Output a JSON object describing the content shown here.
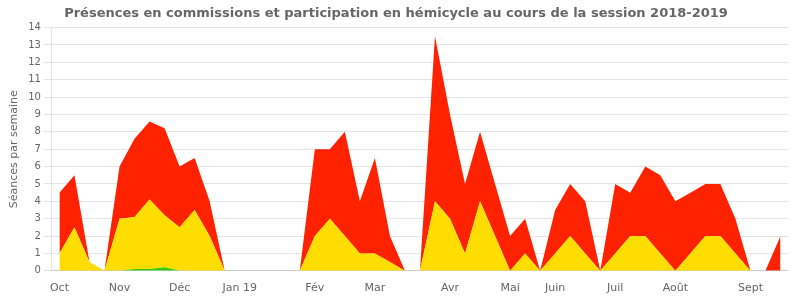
{
  "chart_data": {
    "type": "area",
    "title": "Présences en commissions et participation en hémicycle au cours de la session 2018-2019",
    "ylabel": "Séances par semaine",
    "categories": [
      "Oct",
      null,
      null,
      null,
      "Nov",
      null,
      null,
      null,
      "Déc",
      null,
      null,
      null,
      "Jan 19",
      null,
      null,
      null,
      null,
      "Fév",
      null,
      null,
      null,
      "Mar",
      null,
      null,
      null,
      null,
      "Avr",
      null,
      null,
      null,
      "Mai",
      null,
      null,
      "Juin",
      null,
      null,
      null,
      "Juil",
      null,
      null,
      null,
      "Août",
      null,
      null,
      null,
      null,
      "Sept",
      null,
      null
    ],
    "series": [
      {
        "color": "#33cc00",
        "values": [
          0,
          0,
          0,
          0,
          0,
          0.1,
          0.1,
          0.2,
          0,
          0,
          0,
          0,
          0,
          0,
          0,
          0,
          0,
          0,
          0,
          0,
          0,
          0,
          0,
          0,
          0,
          0,
          0,
          0,
          0,
          0,
          0,
          0,
          0,
          0,
          0,
          0,
          0,
          0,
          0,
          0,
          0,
          0,
          0,
          0,
          0,
          0,
          0,
          0,
          0
        ]
      },
      {
        "color": "#ffdd00",
        "values": [
          1,
          2.5,
          0.5,
          0,
          3,
          3,
          4,
          3,
          2.5,
          3.5,
          2,
          0,
          0,
          0,
          0,
          0,
          0,
          2,
          3,
          2,
          1,
          1,
          0.5,
          0,
          0,
          4,
          3,
          1,
          4,
          2,
          0,
          1,
          0,
          1,
          2,
          1,
          0,
          1,
          2,
          2,
          1,
          0,
          1,
          2,
          2,
          1,
          0,
          0,
          0
        ]
      },
      {
        "color": "#ff2200",
        "values": [
          3.5,
          3,
          0,
          0,
          3,
          4.5,
          4.5,
          5,
          3.5,
          3,
          2,
          0,
          0,
          0,
          0,
          0,
          0,
          5,
          4,
          6,
          3,
          5.5,
          1.5,
          0,
          0,
          9.5,
          6,
          4,
          4,
          3,
          2,
          2,
          0,
          2.5,
          3,
          3,
          0,
          4,
          2.5,
          4,
          4.5,
          4,
          3.5,
          3,
          3,
          2,
          0,
          0,
          2
        ]
      }
    ],
    "ylim": [
      0,
      14
    ],
    "yticks": [
      0,
      1,
      2,
      3,
      4,
      5,
      6,
      7,
      8,
      9,
      10,
      11,
      12,
      13,
      14
    ],
    "stacked": true,
    "grid": true
  }
}
